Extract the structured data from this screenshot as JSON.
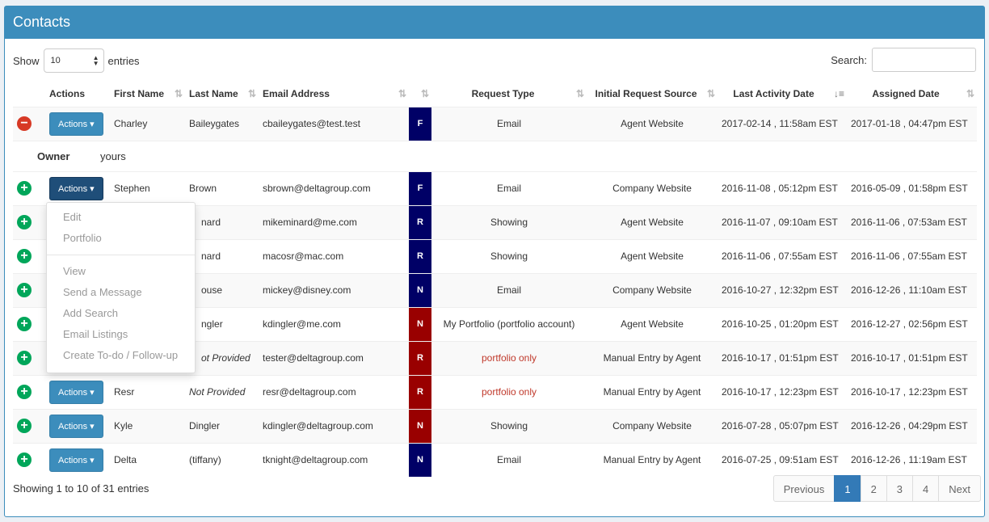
{
  "title": "Contacts",
  "show": {
    "label": "Show",
    "value": "10",
    "suffix": "entries"
  },
  "search": {
    "label": "Search:",
    "value": ""
  },
  "columns": [
    "Actions",
    "First Name",
    "Last Name",
    "Email Address",
    "",
    "Request Type",
    "Initial Request Source",
    "Last Activity Date",
    "Assigned Date"
  ],
  "action_label": "Actions",
  "owner": {
    "label": "Owner",
    "value": "yours"
  },
  "rows": [
    {
      "first": "Charley",
      "last": "Baileygates",
      "email": "cbaileygates@test.test",
      "badge": "F",
      "color": "#000066",
      "type": "Email",
      "source": "Agent Website",
      "last_activity": "2017-02-14 , 11:58am EST",
      "assigned": "2017-01-18 , 04:47pm EST",
      "expanded": true
    },
    {
      "first": "Stephen",
      "last": "Brown",
      "email": "sbrown@deltagroup.com",
      "badge": "F",
      "color": "#000066",
      "type": "Email",
      "source": "Company Website",
      "last_activity": "2016-11-08 , 05:12pm EST",
      "assigned": "2016-05-09 , 01:58pm EST",
      "open": true
    },
    {
      "first": "",
      "last": "nard",
      "email": "mikeminard@me.com",
      "badge": "R",
      "color": "#000066",
      "type": "Showing",
      "source": "Agent Website",
      "last_activity": "2016-11-07 , 09:10am EST",
      "assigned": "2016-11-06 , 07:53am EST"
    },
    {
      "first": "",
      "last": "nard",
      "email": "macosr@mac.com",
      "badge": "R",
      "color": "#000066",
      "type": "Showing",
      "source": "Agent Website",
      "last_activity": "2016-11-06 , 07:55am EST",
      "assigned": "2016-11-06 , 07:55am EST"
    },
    {
      "first": "",
      "last": "ouse",
      "email": "mickey@disney.com",
      "badge": "N",
      "color": "#000066",
      "type": "Email",
      "source": "Company Website",
      "last_activity": "2016-10-27 , 12:32pm EST",
      "assigned": "2016-12-26 , 11:10am EST"
    },
    {
      "first": "",
      "last": "ngler",
      "email": "kdingler@me.com",
      "badge": "N",
      "color": "#990000",
      "type": "My Portfolio (portfolio account)",
      "source": "Agent Website",
      "last_activity": "2016-10-25 , 01:20pm EST",
      "assigned": "2016-12-27 , 02:56pm EST"
    },
    {
      "first": "",
      "last": "ot Provided",
      "email": "tester@deltagroup.com",
      "badge": "R",
      "color": "#990000",
      "type": "portfolio only",
      "source": "Manual Entry by Agent",
      "last_activity": "2016-10-17 , 01:51pm EST",
      "assigned": "2016-10-17 , 01:51pm EST"
    },
    {
      "first": "Resr",
      "last": "Not Provided",
      "email": "resr@deltagroup.com",
      "badge": "R",
      "color": "#990000",
      "type": "portfolio only",
      "source": "Manual Entry by Agent",
      "last_activity": "2016-10-17 , 12:23pm EST",
      "assigned": "2016-10-17 , 12:23pm EST"
    },
    {
      "first": "Kyle",
      "last": "Dingler",
      "email": "kdingler@deltagroup.com",
      "badge": "N",
      "color": "#990000",
      "type": "Showing",
      "source": "Company Website",
      "last_activity": "2016-07-28 , 05:07pm EST",
      "assigned": "2016-12-26 , 04:29pm EST"
    },
    {
      "first": "Delta",
      "last": "(tiffany)",
      "email": "tknight@deltagroup.com",
      "badge": "N",
      "color": "#000066",
      "type": "Email",
      "source": "Manual Entry by Agent",
      "last_activity": "2016-07-25 , 09:51am EST",
      "assigned": "2016-12-26 , 11:19am EST"
    }
  ],
  "menu": {
    "group1": [
      "Edit",
      "Portfolio"
    ],
    "group2": [
      "View",
      "Send a Message",
      "Add Search",
      "Email Listings",
      "Create To-do / Follow-up"
    ]
  },
  "info": "Showing 1 to 10 of 31 entries",
  "pagination": [
    "Previous",
    "1",
    "2",
    "3",
    "4",
    "Next"
  ],
  "current_page": "1"
}
